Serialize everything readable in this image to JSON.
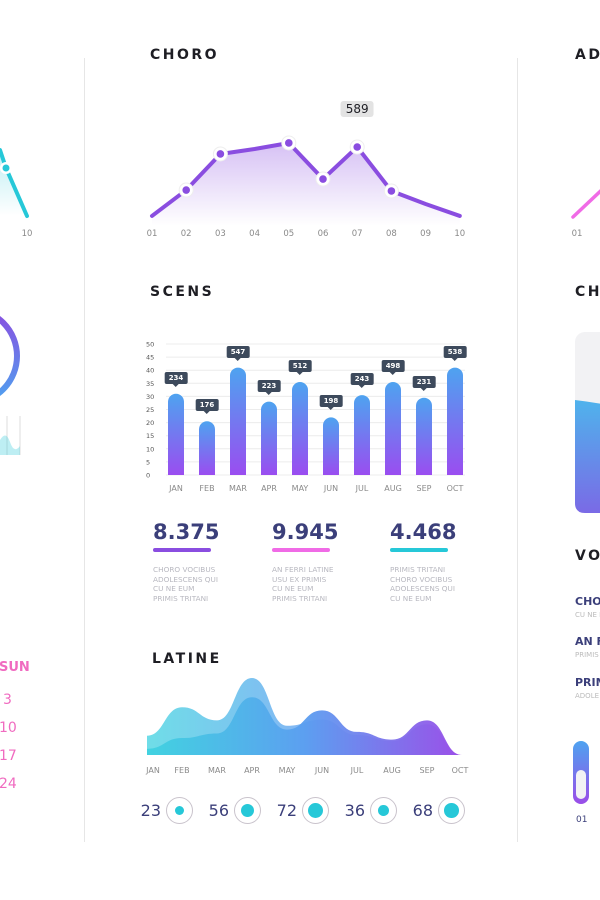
{
  "colors": {
    "purple": "#8a4de0",
    "pink": "#f06be6",
    "cyan": "#26c8d8",
    "blue": "#4ea3f0",
    "navy": "#3b3f7a",
    "bubble": "#3d4a5c"
  },
  "left_panel": {
    "line_tick": "10",
    "calendar": {
      "header": "SUN",
      "days": [
        "3",
        "10",
        "17",
        "24"
      ]
    }
  },
  "right_panel": {
    "title1": "ADO",
    "tick": "01",
    "title2": "CHO",
    "title3": "VOC",
    "list": [
      {
        "title": "CHOR",
        "sub": "CU NE E"
      },
      {
        "title": "AN F",
        "sub": "PRIMIS"
      },
      {
        "title": "PRIM",
        "sub": "ADOLE"
      }
    ],
    "pill_label": "01"
  },
  "chart_data": [
    {
      "type": "line",
      "title": "CHORO",
      "categories": [
        "01",
        "02",
        "03",
        "04",
        "05",
        "06",
        "07",
        "08",
        "09",
        "10"
      ],
      "values": [
        75,
        268,
        537,
        574,
        619,
        350,
        589,
        261,
        164,
        75
      ],
      "highlight": {
        "category": "07",
        "label": "589"
      },
      "markers": [
        "02",
        "03",
        "05",
        "06",
        "07",
        "08"
      ],
      "grid": false
    },
    {
      "type": "bar",
      "title": "SCENS",
      "categories": [
        "JAN",
        "FEB",
        "MAR",
        "APR",
        "MAY",
        "JUN",
        "JUL",
        "AUG",
        "SEP",
        "OCT"
      ],
      "values": [
        31,
        20.5,
        41,
        28,
        35.5,
        22,
        30.5,
        35.5,
        29.5,
        41
      ],
      "data_labels": [
        "234",
        "176",
        "547",
        "223",
        "512",
        "198",
        "243",
        "498",
        "231",
        "538"
      ],
      "yticks": [
        "0",
        "5",
        "10",
        "15",
        "20",
        "25",
        "30",
        "35",
        "40",
        "45",
        "50"
      ],
      "ylim": [
        0,
        50
      ],
      "grid": true
    },
    {
      "type": "area",
      "title": "LATINE",
      "categories": [
        "JAN",
        "FEB",
        "MAR",
        "APR",
        "MAY",
        "JUN",
        "JUL",
        "AUG",
        "SEP",
        "OCT"
      ],
      "series": [
        {
          "values": [
            25,
            62,
            45,
            100,
            38,
            46,
            26,
            18,
            40,
            0
          ]
        },
        {
          "values": [
            8,
            22,
            28,
            75,
            33,
            58,
            30,
            20,
            45,
            0
          ]
        }
      ],
      "ylim": [
        0,
        100
      ]
    }
  ],
  "stats": [
    {
      "value": "8.375",
      "color": "#8a4de0",
      "desc": "CHORO VOCIBUS\nADOLESCENS QUI\nCU NE EUM\nPRIMIS TRITANI"
    },
    {
      "value": "9.945",
      "color": "#f06be6",
      "desc": "AN FERRI LATINE\nUSU EX PRIMIS\nCU NE EUM\nPRIMIS TRITANI"
    },
    {
      "value": "4.468",
      "color": "#26c8d8",
      "desc": "PRIMIS TRITANI\nCHORO VOCIBUS\nADOLESCENS QUI\nCU NE EUM"
    }
  ],
  "gauges": [
    {
      "value": "23",
      "level": 23
    },
    {
      "value": "56",
      "level": 56
    },
    {
      "value": "72",
      "level": 72
    },
    {
      "value": "36",
      "level": 36
    },
    {
      "value": "68",
      "level": 68
    }
  ]
}
